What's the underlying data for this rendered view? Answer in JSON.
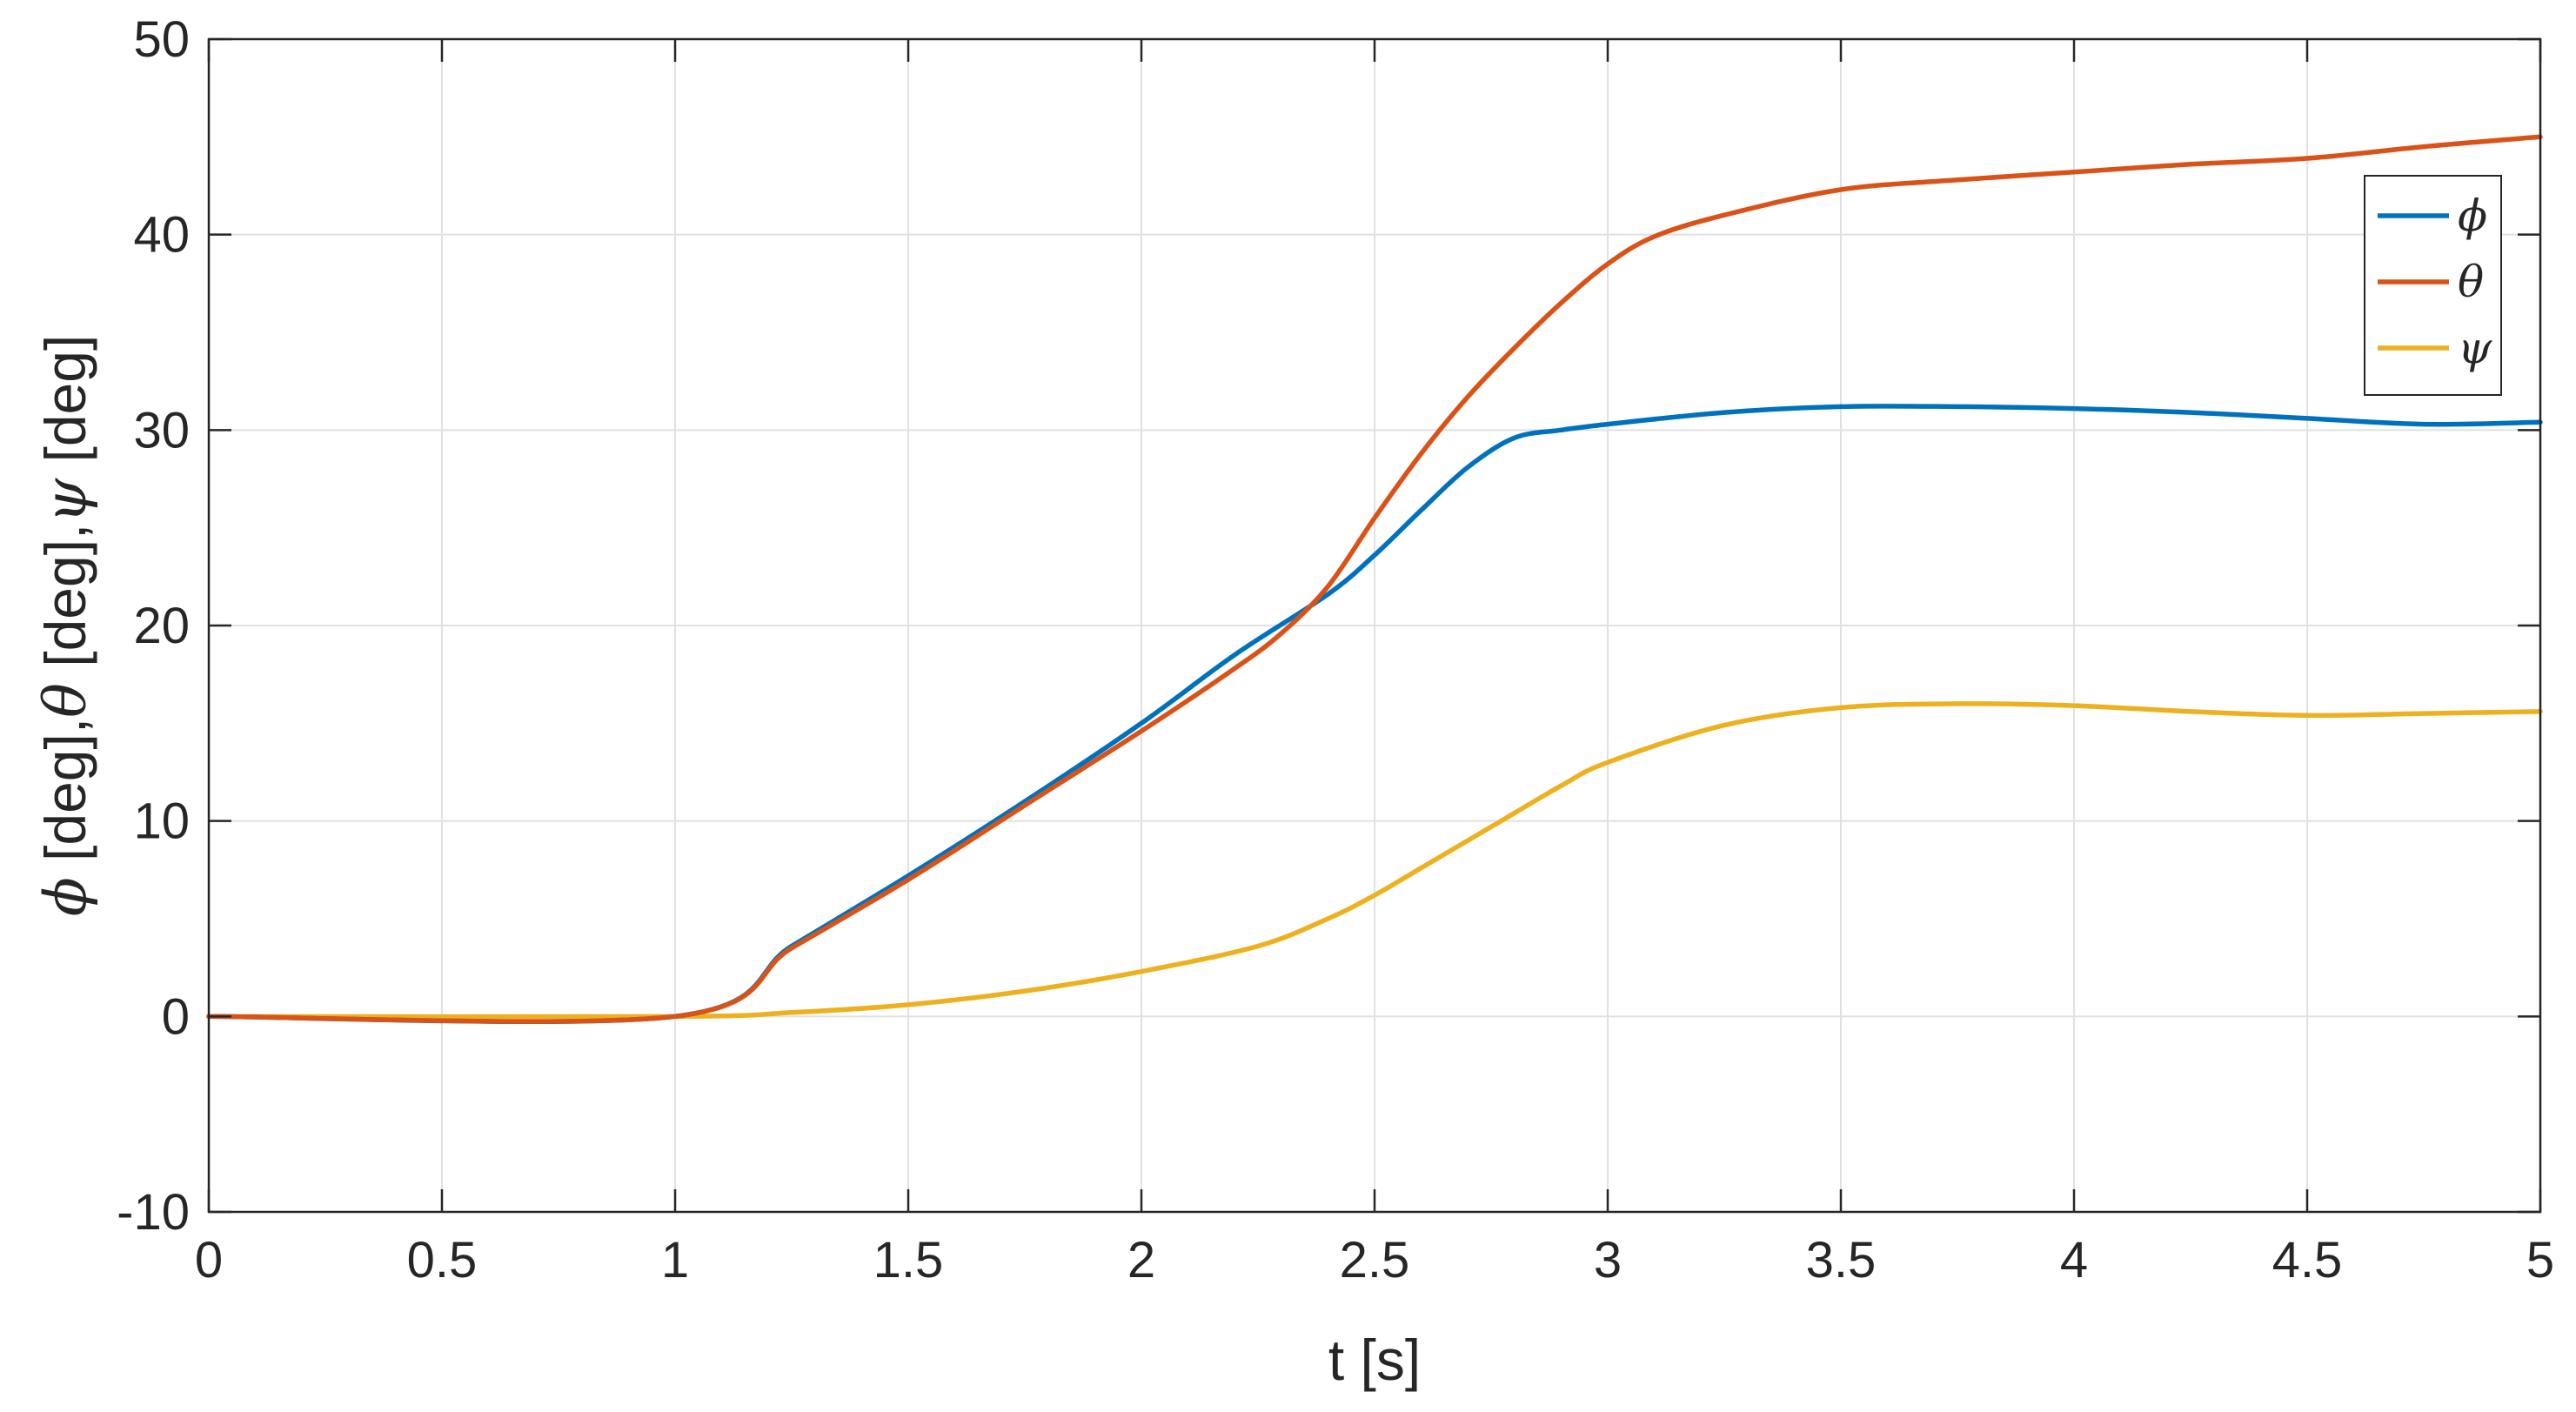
{
  "chart_data": {
    "type": "line",
    "xlabel": "t [s]",
    "ylabel_parts": [
      "ϕ",
      " [deg],",
      "θ",
      " [deg],",
      "ψ",
      " [deg]"
    ],
    "xlim": [
      0,
      5
    ],
    "ylim": [
      -10,
      50
    ],
    "xticks": [
      0,
      0.5,
      1,
      1.5,
      2,
      2.5,
      3,
      3.5,
      4,
      4.5,
      5
    ],
    "xtick_labels": [
      "0",
      "0.5",
      "1",
      "1.5",
      "2",
      "2.5",
      "3",
      "3.5",
      "4",
      "4.5",
      "5"
    ],
    "yticks": [
      -10,
      0,
      10,
      20,
      30,
      40,
      50
    ],
    "ytick_labels": [
      "-10",
      "0",
      "10",
      "20",
      "30",
      "40",
      "50"
    ],
    "grid": true,
    "legend_position": "top-right",
    "series": [
      {
        "name": "ϕ",
        "color": "#0072bd",
        "x": [
          0,
          1.0,
          1.25,
          1.5,
          1.75,
          2.0,
          2.2,
          2.4,
          2.5,
          2.6,
          2.7,
          2.8,
          2.9,
          3.0,
          3.25,
          3.5,
          3.75,
          4.0,
          4.25,
          4.5,
          4.75,
          5.0
        ],
        "y": [
          0,
          0,
          3.6,
          7.2,
          11.0,
          15.0,
          18.5,
          21.6,
          23.6,
          25.9,
          28.1,
          29.6,
          30.0,
          30.3,
          30.9,
          31.2,
          31.2,
          31.1,
          30.9,
          30.6,
          30.3,
          30.4
        ]
      },
      {
        "name": "θ",
        "color": "#d95319",
        "x": [
          0,
          1.0,
          1.25,
          1.5,
          1.75,
          2.0,
          2.2,
          2.3,
          2.4,
          2.5,
          2.6,
          2.7,
          2.8,
          2.9,
          3.0,
          3.1,
          3.25,
          3.5,
          3.75,
          4.0,
          4.25,
          4.5,
          4.75,
          5.0
        ],
        "y": [
          0,
          0,
          3.5,
          7.0,
          10.8,
          14.6,
          17.8,
          19.6,
          22.0,
          25.5,
          28.8,
          31.7,
          34.2,
          36.5,
          38.5,
          39.9,
          41.0,
          42.3,
          42.8,
          43.2,
          43.6,
          43.9,
          44.5,
          45.0
        ]
      },
      {
        "name": "ψ",
        "color": "#edb120",
        "x": [
          0,
          1.0,
          1.25,
          1.5,
          1.75,
          2.0,
          2.25,
          2.4,
          2.5,
          2.6,
          2.75,
          2.9,
          3.0,
          3.25,
          3.5,
          3.75,
          4.0,
          4.25,
          4.5,
          4.75,
          5.0
        ],
        "y": [
          0,
          0,
          0.2,
          0.6,
          1.3,
          2.3,
          3.6,
          5.0,
          6.2,
          7.6,
          9.7,
          11.8,
          13.0,
          14.9,
          15.8,
          16.0,
          15.9,
          15.6,
          15.4,
          15.5,
          15.6
        ]
      }
    ]
  }
}
